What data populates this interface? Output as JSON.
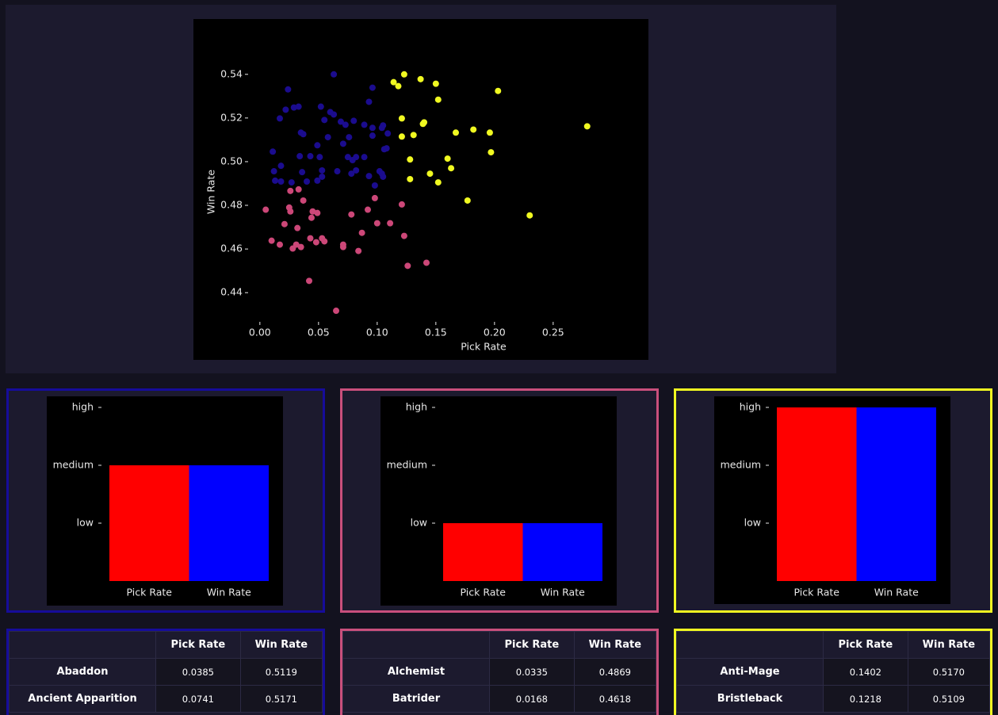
{
  "chart_data": [
    {
      "type": "scatter",
      "x_label": "Pick Rate",
      "y_label": "Win Rate",
      "xlim": [
        -0.008,
        0.292
      ],
      "ylim": [
        0.427,
        0.545
      ],
      "xticks": [
        {
          "value": 0,
          "label": "0.00"
        },
        0.05,
        {
          "value": 0.1,
          "label": "0.10"
        },
        0.15,
        {
          "value": 0.2,
          "label": "0.20"
        },
        0.25
      ],
      "yticks": [
        0.44,
        0.46,
        0.48,
        {
          "value": 0.5,
          "label": "0.50"
        },
        0.52,
        0.54
      ],
      "series": [
        {
          "color": "#1b0c8f",
          "x": [
            0.063,
            0.024,
            0.096,
            0.093,
            0.022,
            0.029,
            0.033,
            0.052,
            0.06,
            0.063,
            0.055,
            0.017,
            0.069,
            0.073,
            0.08,
            0.089,
            0.096,
            0.104,
            0.105,
            0.035,
            0.037,
            0.058,
            0.076,
            0.096,
            0.109,
            0.071,
            0.049,
            0.106,
            0.108,
            0.011,
            0.034,
            0.043,
            0.075,
            0.082,
            0.089,
            0.079,
            0.051,
            0.018,
            0.012,
            0.036,
            0.066,
            0.053,
            0.082,
            0.078,
            0.102,
            0.104,
            0.093,
            0.013,
            0.018,
            0.04,
            0.053,
            0.049,
            0.105,
            0.098,
            0.027
          ],
          "values": [
            0.54,
            0.5331,
            0.5339,
            0.5274,
            0.5238,
            0.5248,
            0.5252,
            0.5252,
            0.5227,
            0.5216,
            0.5191,
            0.5198,
            0.5183,
            0.5169,
            0.5187,
            0.5169,
            0.5155,
            0.5155,
            0.5166,
            0.5133,
            0.5126,
            0.5112,
            0.5112,
            0.5119,
            0.5129,
            0.5082,
            0.5075,
            0.5057,
            0.5061,
            0.5046,
            0.5025,
            0.5025,
            0.5021,
            0.5021,
            0.5021,
            0.5007,
            0.5021,
            0.4981,
            0.4956,
            0.4952,
            0.4956,
            0.496,
            0.496,
            0.4945,
            0.4956,
            0.4945,
            0.4934,
            0.4913,
            0.4909,
            0.4909,
            0.4931,
            0.4913,
            0.4931,
            0.4891,
            0.4905
          ]
        },
        {
          "color": "#cc4778",
          "x": [
            0.026,
            0.033,
            0.037,
            0.098,
            0.121,
            0.005,
            0.025,
            0.026,
            0.045,
            0.049,
            0.092,
            0.078,
            0.1,
            0.111,
            0.021,
            0.044,
            0.032,
            0.087,
            0.123,
            0.043,
            0.053,
            0.055,
            0.048,
            0.01,
            0.017,
            0.031,
            0.035,
            0.028,
            0.071,
            0.071,
            0.084,
            0.142,
            0.126,
            0.042,
            0.065
          ],
          "values": [
            0.4866,
            0.4873,
            0.4822,
            0.4833,
            0.4804,
            0.478,
            0.479,
            0.4772,
            0.4772,
            0.4765,
            0.478,
            0.4758,
            0.4718,
            0.4718,
            0.4714,
            0.4743,
            0.4696,
            0.4674,
            0.466,
            0.4649,
            0.4649,
            0.4635,
            0.4631,
            0.4638,
            0.462,
            0.462,
            0.4609,
            0.4602,
            0.462,
            0.4609,
            0.4591,
            0.4537,
            0.4523,
            0.4454,
            0.4317
          ]
        },
        {
          "color": "#f0f921",
          "x": [
            0.123,
            0.114,
            0.118,
            0.137,
            0.15,
            0.203,
            0.152,
            0.121,
            0.14,
            0.139,
            0.279,
            0.182,
            0.167,
            0.196,
            0.131,
            0.121,
            0.197,
            0.16,
            0.128,
            0.163,
            0.145,
            0.128,
            0.152,
            0.177,
            0.23
          ],
          "values": [
            0.54,
            0.5364,
            0.5346,
            0.5378,
            0.5357,
            0.5324,
            0.5284,
            0.5198,
            0.518,
            0.5173,
            0.5162,
            0.5147,
            0.5133,
            0.5133,
            0.5122,
            0.5115,
            0.5043,
            0.5014,
            0.501,
            0.497,
            0.4945,
            0.492,
            0.4905,
            0.4822,
            0.4754
          ]
        }
      ]
    },
    {
      "type": "bar",
      "categories": [
        "Pick Rate",
        "Win Rate"
      ],
      "values": [
        2,
        2
      ],
      "colors": [
        "#ff0000",
        "#0000ff"
      ],
      "ylim": [
        0,
        3.15
      ],
      "yticks": [
        {
          "value": 1,
          "label": "low"
        },
        {
          "value": 2,
          "label": "medium"
        },
        {
          "value": 3,
          "label": "high"
        }
      ]
    },
    {
      "type": "bar",
      "categories": [
        "Pick Rate",
        "Win Rate"
      ],
      "values": [
        1,
        1
      ],
      "colors": [
        "#ff0000",
        "#0000ff"
      ],
      "ylim": [
        0,
        3.15
      ],
      "yticks": [
        {
          "value": 1,
          "label": "low"
        },
        {
          "value": 2,
          "label": "medium"
        },
        {
          "value": 3,
          "label": "high"
        }
      ]
    },
    {
      "type": "bar",
      "categories": [
        "Pick Rate",
        "Win Rate"
      ],
      "values": [
        3,
        3
      ],
      "colors": [
        "#ff0000",
        "#0000ff"
      ],
      "ylim": [
        0,
        3.15
      ],
      "yticks": [
        {
          "value": 1,
          "label": "low"
        },
        {
          "value": 2,
          "label": "medium"
        },
        {
          "value": 3,
          "label": "high"
        }
      ]
    }
  ],
  "tables": [
    {
      "columns": [
        "Pick Rate",
        "Win Rate"
      ],
      "rows": [
        [
          "Abaddon",
          "0.0385",
          "0.5119"
        ],
        [
          "Ancient Apparition",
          "0.0741",
          "0.5171"
        ]
      ]
    },
    {
      "columns": [
        "Pick Rate",
        "Win Rate"
      ],
      "rows": [
        [
          "Alchemist",
          "0.0335",
          "0.4869"
        ],
        [
          "Batrider",
          "0.0168",
          "0.4618"
        ]
      ]
    },
    {
      "columns": [
        "Pick Rate",
        "Win Rate"
      ],
      "rows": [
        [
          "Anti-Mage",
          "0.1402",
          "0.5170"
        ],
        [
          "Bristleback",
          "0.1218",
          "0.5109"
        ]
      ]
    }
  ]
}
